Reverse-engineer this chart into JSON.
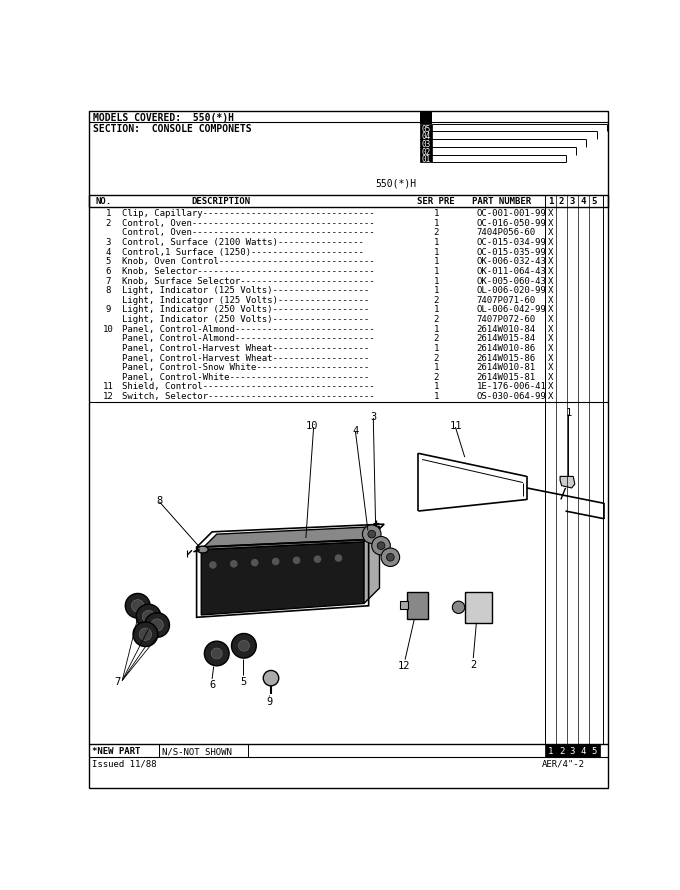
{
  "title_model": "MODELS COVERED:  550(*)H",
  "title_section": "SECTION:  CONSOLE COMPONETS",
  "parts": [
    {
      "no": "1",
      "desc": "Clip, Capillary--------------------------------",
      "ser": "1",
      "part": "OC-001-001-99"
    },
    {
      "no": "2",
      "desc": "Control, Oven----------------------------------",
      "ser": "1",
      "part": "OC-016-050-99"
    },
    {
      "no": "",
      "desc": "Control, Oven----------------------------------",
      "ser": "2",
      "part": "7404P056-60"
    },
    {
      "no": "3",
      "desc": "Control, Surface (2100 Watts)----------------",
      "ser": "1",
      "part": "OC-015-034-99"
    },
    {
      "no": "4",
      "desc": "Control,1 Surface (1250)---------------------",
      "ser": "1",
      "part": "OC-015-035-99"
    },
    {
      "no": "5",
      "desc": "Knob, Oven Control-----------------------------",
      "ser": "1",
      "part": "OK-006-032-43"
    },
    {
      "no": "6",
      "desc": "Knob, Selector---------------------------------",
      "ser": "1",
      "part": "OK-011-064-43"
    },
    {
      "no": "7",
      "desc": "Knob, Surface Selector-------------------------",
      "ser": "1",
      "part": "OK-005-060-43"
    },
    {
      "no": "8",
      "desc": "Light, Indicator (125 Volts)------------------",
      "ser": "1",
      "part": "OL-006-020-99"
    },
    {
      "no": "",
      "desc": "Light, Indicatgor (125 Volts)-----------------",
      "ser": "2",
      "part": "7407P071-60"
    },
    {
      "no": "9",
      "desc": "Light, Indicator (250 Volts)------------------",
      "ser": "1",
      "part": "OL-006-042-99"
    },
    {
      "no": "",
      "desc": "Light, Indicator (250 Volts)------------------",
      "ser": "2",
      "part": "7407P072-60"
    },
    {
      "no": "10",
      "desc": "Panel, Control-Almond--------------------------",
      "ser": "1",
      "part": "2614W010-84"
    },
    {
      "no": "",
      "desc": "Panel, Control-Almond--------------------------",
      "ser": "2",
      "part": "2614W015-84"
    },
    {
      "no": "",
      "desc": "Panel, Control-Harvest Wheat------------------",
      "ser": "1",
      "part": "2614W010-86"
    },
    {
      "no": "",
      "desc": "Panel, Control-Harvest Wheat------------------",
      "ser": "2",
      "part": "2614W015-86"
    },
    {
      "no": "",
      "desc": "Panel, Control-Snow White---------------------",
      "ser": "1",
      "part": "2614W010-81"
    },
    {
      "no": "",
      "desc": "Panel, Control-White--------------------------",
      "ser": "2",
      "part": "2614W015-81"
    },
    {
      "no": "11",
      "desc": "Shield, Control--------------------------------",
      "ser": "1",
      "part": "1E-176-006-41"
    },
    {
      "no": "12",
      "desc": "Switch, Selector-------------------------------",
      "ser": "1",
      "part": "OS-030-064-99"
    }
  ],
  "footer_left": "*NEW PART",
  "footer_mid": "N/S-NOT SHOWN",
  "footer_issue": "Issued 11/88",
  "footer_right": "AER/4\"-2",
  "tab_labels": [
    "05",
    "04",
    "03",
    "02",
    "01"
  ],
  "model_label": "550(*)H",
  "bg_color": "#ffffff",
  "line_color": "#000000",
  "tab_facecolor": "#000000",
  "tab_textcolor": "#ffffff"
}
